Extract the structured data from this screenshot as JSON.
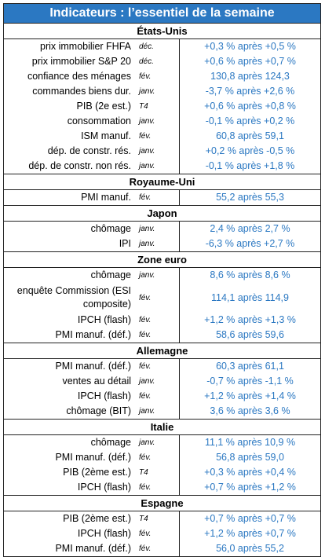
{
  "title": "Indicateurs : l’essentiel de la semaine",
  "sections": [
    {
      "name": "États-Unis",
      "rows": [
        {
          "label": "prix immobilier FHFA",
          "period": "déc.",
          "value": "+0,3 % après +0,5 %"
        },
        {
          "label": "prix immobilier S&P 20",
          "period": "déc.",
          "value": "+0,6 % après +0,7 %"
        },
        {
          "label": "confiance des ménages",
          "period": "fév.",
          "value": "130,8 après 124,3"
        },
        {
          "label": "commandes biens dur.",
          "period": "janv.",
          "value": "-3,7 % après +2,6 %"
        },
        {
          "label": "PIB (2e est.)",
          "period": "T4",
          "value": "+0,6 % après +0,8 %"
        },
        {
          "label": "consommation",
          "period": "janv.",
          "value": "-0,1 % après +0,2 %"
        },
        {
          "label": "ISM manuf.",
          "period": "fév.",
          "value": "60,8 après 59,1"
        },
        {
          "label": "dép. de constr. rés.",
          "period": "janv.",
          "value": "+0,2 % après -0,5 %"
        },
        {
          "label": "dép. de constr. non rés.",
          "period": "janv.",
          "value": "-0,1 % après +1,8 %"
        }
      ]
    },
    {
      "name": "Royaume-Uni",
      "rows": [
        {
          "label": "PMI manuf.",
          "period": "fév.",
          "value": "55,2 après 55,3"
        }
      ]
    },
    {
      "name": "Japon",
      "rows": [
        {
          "label": "chômage",
          "period": "janv.",
          "value": "2,4 % après 2,7 %"
        },
        {
          "label": "IPI",
          "period": "janv.",
          "value": "-6,3 % après +2,7 %"
        }
      ]
    },
    {
      "name": "Zone euro",
      "rows": [
        {
          "label": "chômage",
          "period": "janv.",
          "value": "8,6 % après 8,6 %"
        },
        {
          "label": "enquête Commission (ESI composite)",
          "period": "fév.",
          "value": "114,1 après 114,9",
          "tall": true
        },
        {
          "label": "IPCH (flash)",
          "period": "fév.",
          "value": "+1,2 % après +1,3 %"
        },
        {
          "label": "PMI manuf. (déf.)",
          "period": "fév.",
          "value": "58,6 après 59,6"
        }
      ]
    },
    {
      "name": "Allemagne",
      "rows": [
        {
          "label": "PMI manuf. (déf.)",
          "period": "fév.",
          "value": "60,3 après 61,1"
        },
        {
          "label": "ventes au détail",
          "period": "janv.",
          "value": "-0,7 % après -1,1 %"
        },
        {
          "label": "IPCH (flash)",
          "period": "fév.",
          "value": "+1,2 % après +1,4 %"
        },
        {
          "label": "chômage (BIT)",
          "period": "janv.",
          "value": "3,6 % après 3,6 %"
        }
      ]
    },
    {
      "name": "Italie",
      "rows": [
        {
          "label": "chômage",
          "period": "janv.",
          "value": "11,1 % après 10,9 %"
        },
        {
          "label": "PMI manuf. (déf.)",
          "period": "fév.",
          "value": "56,8 après 59,0"
        },
        {
          "label": "PIB (2ème est.)",
          "period": "T4",
          "value": "+0,3 % après +0,4 %"
        },
        {
          "label": "IPCH (flash)",
          "period": "fév.",
          "value": "+0,7 % après +1,2 %"
        }
      ]
    },
    {
      "name": "Espagne",
      "rows": [
        {
          "label": "PIB (2ème est.)",
          "period": "T4",
          "value": "+0,7 % après +0,7 %"
        },
        {
          "label": "IPCH (flash)",
          "period": "fév.",
          "value": "+1,2 % après +0,7 %"
        },
        {
          "label": "PMI manuf. (déf.)",
          "period": "fév.",
          "value": "56,0 après 55,2"
        }
      ]
    }
  ]
}
